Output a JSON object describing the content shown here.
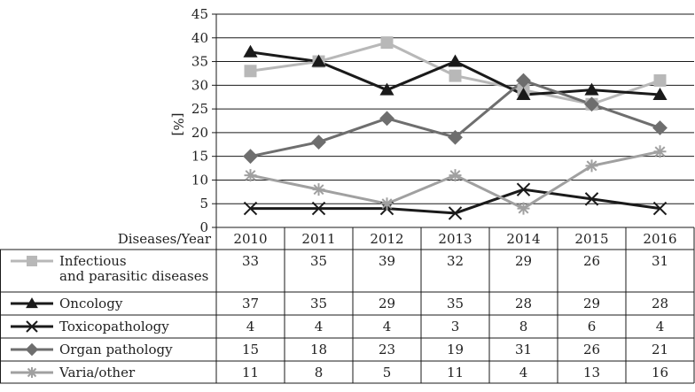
{
  "chart_data": {
    "type": "line",
    "title": "",
    "xlabel": "",
    "ylabel": "[%]",
    "ylim": [
      0,
      45
    ],
    "yticks": [
      0,
      5,
      10,
      15,
      20,
      25,
      30,
      35,
      40,
      45
    ],
    "grid": true,
    "table_header": "Diseases/Year",
    "categories": [
      "2010",
      "2011",
      "2012",
      "2013",
      "2014",
      "2015",
      "2016"
    ],
    "series": [
      {
        "name_lines": [
          "Infectious",
          "and parasitic diseases"
        ],
        "marker": "square",
        "color": "#b8b8b8",
        "values": [
          33,
          35,
          39,
          32,
          29,
          26,
          31
        ]
      },
      {
        "name_lines": [
          "Oncology"
        ],
        "marker": "triangle",
        "color": "#1a1a1a",
        "values": [
          37,
          35,
          29,
          35,
          28,
          29,
          28
        ]
      },
      {
        "name_lines": [
          "Toxicopathology"
        ],
        "marker": "x",
        "color": "#1a1a1a",
        "values": [
          4,
          4,
          4,
          3,
          8,
          6,
          4
        ]
      },
      {
        "name_lines": [
          "Organ pathology"
        ],
        "marker": "diamond",
        "color": "#6e6e6e",
        "values": [
          15,
          18,
          23,
          19,
          31,
          26,
          21
        ]
      },
      {
        "name_lines": [
          "Varia/other"
        ],
        "marker": "star",
        "color": "#a0a0a0",
        "values": [
          11,
          8,
          5,
          11,
          4,
          13,
          16
        ]
      }
    ]
  }
}
